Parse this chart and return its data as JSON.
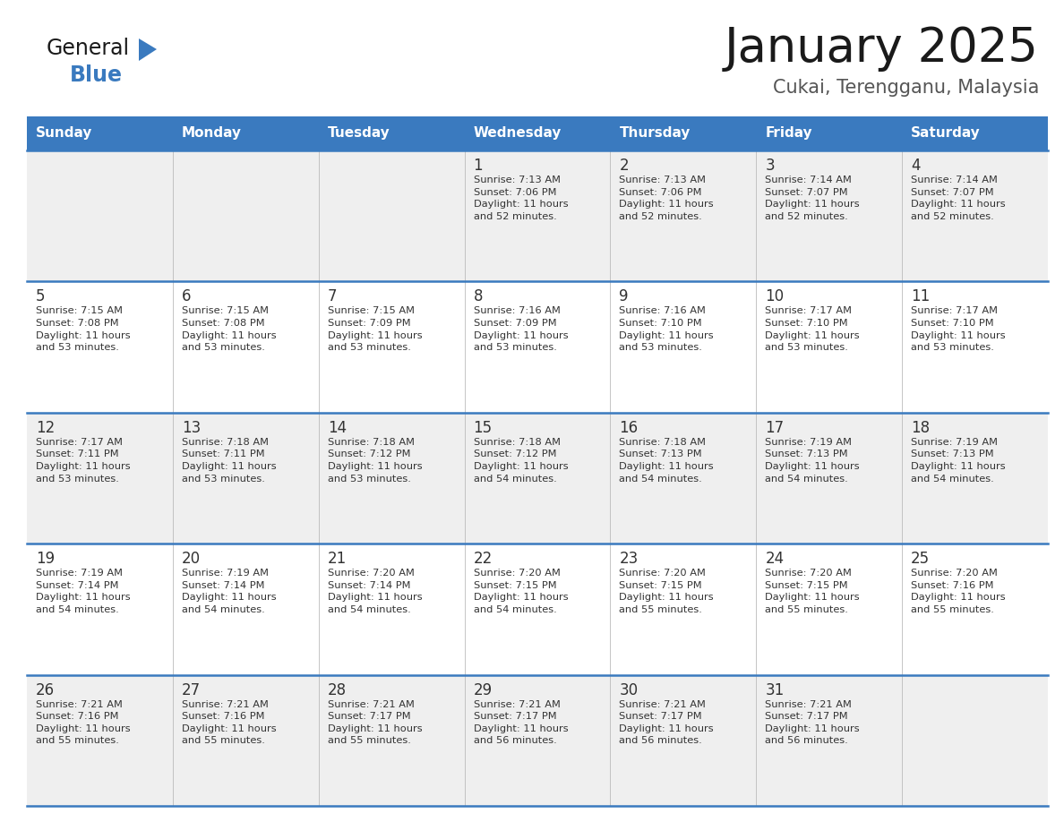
{
  "title": "January 2025",
  "subtitle": "Cukai, Terengganu, Malaysia",
  "days_of_week": [
    "Sunday",
    "Monday",
    "Tuesday",
    "Wednesday",
    "Thursday",
    "Friday",
    "Saturday"
  ],
  "header_bg": "#3a7abf",
  "header_text": "#ffffff",
  "row_bg_odd": "#efefef",
  "row_bg_even": "#ffffff",
  "day_num_color": "#333333",
  "cell_text_color": "#333333",
  "divider_color": "#3a7abf",
  "title_color": "#1a1a1a",
  "subtitle_color": "#555555",
  "logo_black": "#1a1a1a",
  "logo_blue": "#3a7abf",
  "calendar": [
    [
      null,
      null,
      null,
      {
        "day": 1,
        "sunrise": "7:13 AM",
        "sunset": "7:06 PM",
        "daylight": "11 hours\nand 52 minutes."
      },
      {
        "day": 2,
        "sunrise": "7:13 AM",
        "sunset": "7:06 PM",
        "daylight": "11 hours\nand 52 minutes."
      },
      {
        "day": 3,
        "sunrise": "7:14 AM",
        "sunset": "7:07 PM",
        "daylight": "11 hours\nand 52 minutes."
      },
      {
        "day": 4,
        "sunrise": "7:14 AM",
        "sunset": "7:07 PM",
        "daylight": "11 hours\nand 52 minutes."
      }
    ],
    [
      {
        "day": 5,
        "sunrise": "7:15 AM",
        "sunset": "7:08 PM",
        "daylight": "11 hours\nand 53 minutes."
      },
      {
        "day": 6,
        "sunrise": "7:15 AM",
        "sunset": "7:08 PM",
        "daylight": "11 hours\nand 53 minutes."
      },
      {
        "day": 7,
        "sunrise": "7:15 AM",
        "sunset": "7:09 PM",
        "daylight": "11 hours\nand 53 minutes."
      },
      {
        "day": 8,
        "sunrise": "7:16 AM",
        "sunset": "7:09 PM",
        "daylight": "11 hours\nand 53 minutes."
      },
      {
        "day": 9,
        "sunrise": "7:16 AM",
        "sunset": "7:10 PM",
        "daylight": "11 hours\nand 53 minutes."
      },
      {
        "day": 10,
        "sunrise": "7:17 AM",
        "sunset": "7:10 PM",
        "daylight": "11 hours\nand 53 minutes."
      },
      {
        "day": 11,
        "sunrise": "7:17 AM",
        "sunset": "7:10 PM",
        "daylight": "11 hours\nand 53 minutes."
      }
    ],
    [
      {
        "day": 12,
        "sunrise": "7:17 AM",
        "sunset": "7:11 PM",
        "daylight": "11 hours\nand 53 minutes."
      },
      {
        "day": 13,
        "sunrise": "7:18 AM",
        "sunset": "7:11 PM",
        "daylight": "11 hours\nand 53 minutes."
      },
      {
        "day": 14,
        "sunrise": "7:18 AM",
        "sunset": "7:12 PM",
        "daylight": "11 hours\nand 53 minutes."
      },
      {
        "day": 15,
        "sunrise": "7:18 AM",
        "sunset": "7:12 PM",
        "daylight": "11 hours\nand 54 minutes."
      },
      {
        "day": 16,
        "sunrise": "7:18 AM",
        "sunset": "7:13 PM",
        "daylight": "11 hours\nand 54 minutes."
      },
      {
        "day": 17,
        "sunrise": "7:19 AM",
        "sunset": "7:13 PM",
        "daylight": "11 hours\nand 54 minutes."
      },
      {
        "day": 18,
        "sunrise": "7:19 AM",
        "sunset": "7:13 PM",
        "daylight": "11 hours\nand 54 minutes."
      }
    ],
    [
      {
        "day": 19,
        "sunrise": "7:19 AM",
        "sunset": "7:14 PM",
        "daylight": "11 hours\nand 54 minutes."
      },
      {
        "day": 20,
        "sunrise": "7:19 AM",
        "sunset": "7:14 PM",
        "daylight": "11 hours\nand 54 minutes."
      },
      {
        "day": 21,
        "sunrise": "7:20 AM",
        "sunset": "7:14 PM",
        "daylight": "11 hours\nand 54 minutes."
      },
      {
        "day": 22,
        "sunrise": "7:20 AM",
        "sunset": "7:15 PM",
        "daylight": "11 hours\nand 54 minutes."
      },
      {
        "day": 23,
        "sunrise": "7:20 AM",
        "sunset": "7:15 PM",
        "daylight": "11 hours\nand 55 minutes."
      },
      {
        "day": 24,
        "sunrise": "7:20 AM",
        "sunset": "7:15 PM",
        "daylight": "11 hours\nand 55 minutes."
      },
      {
        "day": 25,
        "sunrise": "7:20 AM",
        "sunset": "7:16 PM",
        "daylight": "11 hours\nand 55 minutes."
      }
    ],
    [
      {
        "day": 26,
        "sunrise": "7:21 AM",
        "sunset": "7:16 PM",
        "daylight": "11 hours\nand 55 minutes."
      },
      {
        "day": 27,
        "sunrise": "7:21 AM",
        "sunset": "7:16 PM",
        "daylight": "11 hours\nand 55 minutes."
      },
      {
        "day": 28,
        "sunrise": "7:21 AM",
        "sunset": "7:17 PM",
        "daylight": "11 hours\nand 55 minutes."
      },
      {
        "day": 29,
        "sunrise": "7:21 AM",
        "sunset": "7:17 PM",
        "daylight": "11 hours\nand 56 minutes."
      },
      {
        "day": 30,
        "sunrise": "7:21 AM",
        "sunset": "7:17 PM",
        "daylight": "11 hours\nand 56 minutes."
      },
      {
        "day": 31,
        "sunrise": "7:21 AM",
        "sunset": "7:17 PM",
        "daylight": "11 hours\nand 56 minutes."
      },
      null
    ]
  ]
}
